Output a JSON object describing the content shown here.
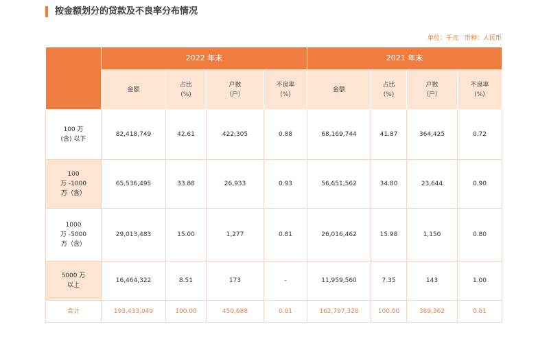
{
  "title": "按金额划分的贷款及不良率分布情况",
  "unit": "单位：千元　币种：人民币",
  "table": {
    "groups": [
      "2022 年末",
      "2021 年末"
    ],
    "columns": [
      [
        "金额"
      ],
      [
        "占比",
        "(%)"
      ],
      [
        "户数",
        "（户）"
      ],
      [
        "不良率",
        "(%)"
      ],
      [
        "金额"
      ],
      [
        "占比",
        "(%)"
      ],
      [
        "户数",
        "（户）"
      ],
      [
        "不良率",
        "(%)"
      ]
    ],
    "rows": [
      {
        "label": [
          "100 万",
          "(含) 以下"
        ],
        "cells": [
          "82,418,749",
          "42.61",
          "422,305",
          "0.88",
          "68,169,744",
          "41.87",
          "364,425",
          "0.72"
        ]
      },
      {
        "label": [
          "100",
          "万 -1000",
          "万（含）"
        ],
        "cells": [
          "65,536,495",
          "33.88",
          "26,933",
          "0.93",
          "56,651,562",
          "34.80",
          "23,644",
          "0.90"
        ]
      },
      {
        "label": [
          "1000",
          "万 -5000",
          "万（含）"
        ],
        "cells": [
          "29,013,483",
          "15.00",
          "1,277",
          "0.81",
          "26,016,462",
          "15.98",
          "1,150",
          "0.80"
        ]
      },
      {
        "label": [
          "5000 万",
          "以上"
        ],
        "cells": [
          "16,464,322",
          "8.51",
          "173",
          "-",
          "11,959,560",
          "7.35",
          "143",
          "1.00"
        ]
      }
    ],
    "total": {
      "label": "合计",
      "cells": [
        "193,433,049",
        "100.00",
        "450,688",
        "0.81",
        "162,797,328",
        "100.00",
        "389,362",
        "0.81"
      ]
    }
  }
}
